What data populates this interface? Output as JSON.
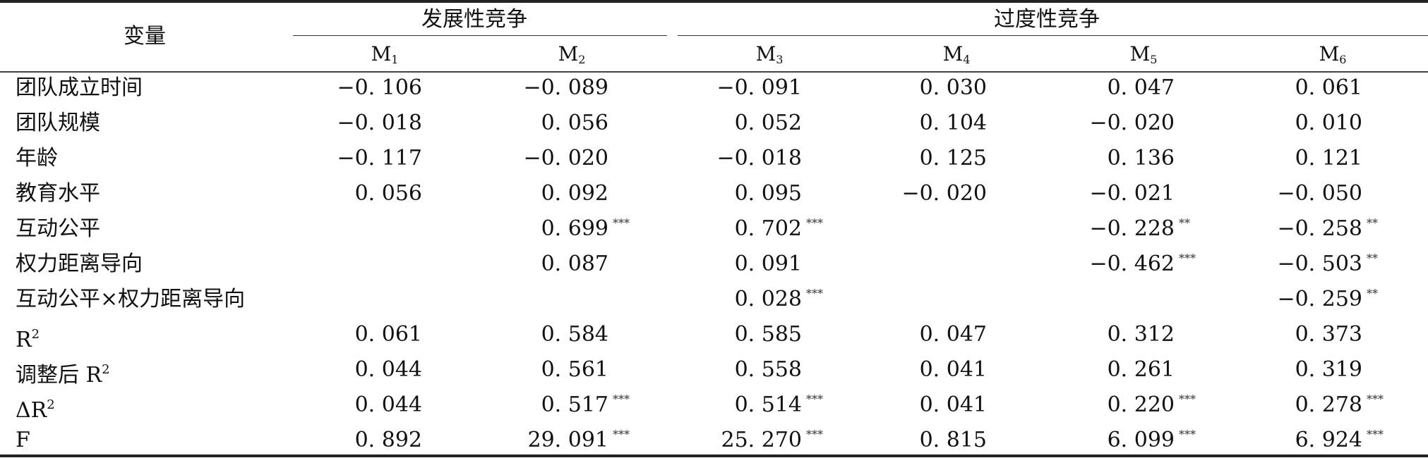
{
  "header": {
    "variable": "变量",
    "group_dev": "发展性竞争",
    "group_excess": "过度性竞争",
    "models": [
      {
        "base": "M",
        "sub": "1"
      },
      {
        "base": "M",
        "sub": "2"
      },
      {
        "base": "M",
        "sub": "3"
      },
      {
        "base": "M",
        "sub": "4"
      },
      {
        "base": "M",
        "sub": "5"
      },
      {
        "base": "M",
        "sub": "6"
      }
    ]
  },
  "rows": [
    {
      "label": "团队成立时间",
      "sup": "",
      "cells": [
        {
          "v": "−0. 106",
          "s": ""
        },
        {
          "v": "−0. 089",
          "s": ""
        },
        {
          "v": "−0. 091",
          "s": ""
        },
        {
          "v": "0. 030",
          "s": ""
        },
        {
          "v": "0. 047",
          "s": ""
        },
        {
          "v": "0. 061",
          "s": ""
        }
      ]
    },
    {
      "label": "团队规模",
      "sup": "",
      "cells": [
        {
          "v": "−0. 018",
          "s": ""
        },
        {
          "v": "0. 056",
          "s": ""
        },
        {
          "v": "0. 052",
          "s": ""
        },
        {
          "v": "0. 104",
          "s": ""
        },
        {
          "v": "−0. 020",
          "s": ""
        },
        {
          "v": "0. 010",
          "s": ""
        }
      ]
    },
    {
      "label": "年龄",
      "sup": "",
      "cells": [
        {
          "v": "−0. 117",
          "s": ""
        },
        {
          "v": "−0. 020",
          "s": ""
        },
        {
          "v": "−0. 018",
          "s": ""
        },
        {
          "v": "0. 125",
          "s": ""
        },
        {
          "v": "0. 136",
          "s": ""
        },
        {
          "v": "0. 121",
          "s": ""
        }
      ]
    },
    {
      "label": "教育水平",
      "sup": "",
      "cells": [
        {
          "v": "0. 056",
          "s": ""
        },
        {
          "v": "0. 092",
          "s": ""
        },
        {
          "v": "0. 095",
          "s": ""
        },
        {
          "v": "−0. 020",
          "s": ""
        },
        {
          "v": "−0. 021",
          "s": ""
        },
        {
          "v": "−0. 050",
          "s": ""
        }
      ]
    },
    {
      "label": "互动公平",
      "sup": "",
      "cells": [
        {
          "v": "",
          "s": ""
        },
        {
          "v": "0. 699",
          "s": "***"
        },
        {
          "v": "0. 702",
          "s": "***"
        },
        {
          "v": "",
          "s": ""
        },
        {
          "v": "−0. 228",
          "s": "**"
        },
        {
          "v": "−0. 258",
          "s": "**"
        }
      ]
    },
    {
      "label": "权力距离导向",
      "sup": "",
      "cells": [
        {
          "v": "",
          "s": ""
        },
        {
          "v": "0. 087",
          "s": ""
        },
        {
          "v": "0. 091",
          "s": ""
        },
        {
          "v": "",
          "s": ""
        },
        {
          "v": "−0. 462",
          "s": "***"
        },
        {
          "v": "−0. 503",
          "s": "**"
        }
      ]
    },
    {
      "label": "互动公平×权力距离导向",
      "sup": "",
      "cells": [
        {
          "v": "",
          "s": ""
        },
        {
          "v": "",
          "s": ""
        },
        {
          "v": "0. 028",
          "s": "***"
        },
        {
          "v": "",
          "s": ""
        },
        {
          "v": "",
          "s": ""
        },
        {
          "v": "−0. 259",
          "s": "**"
        }
      ]
    },
    {
      "label": "R",
      "sup": "2",
      "cells": [
        {
          "v": "0. 061",
          "s": ""
        },
        {
          "v": "0. 584",
          "s": ""
        },
        {
          "v": "0. 585",
          "s": ""
        },
        {
          "v": "0. 047",
          "s": ""
        },
        {
          "v": "0. 312",
          "s": ""
        },
        {
          "v": "0. 373",
          "s": ""
        }
      ]
    },
    {
      "label": "调整后 R",
      "sup": "2",
      "cells": [
        {
          "v": "0. 044",
          "s": ""
        },
        {
          "v": "0. 561",
          "s": ""
        },
        {
          "v": "0. 558",
          "s": ""
        },
        {
          "v": "0. 041",
          "s": ""
        },
        {
          "v": "0. 261",
          "s": ""
        },
        {
          "v": "0. 319",
          "s": ""
        }
      ]
    },
    {
      "label": "ΔR",
      "sup": "2",
      "cells": [
        {
          "v": "0. 044",
          "s": ""
        },
        {
          "v": "0. 517",
          "s": "***"
        },
        {
          "v": "0. 514",
          "s": "***"
        },
        {
          "v": "0. 041",
          "s": ""
        },
        {
          "v": "0. 220",
          "s": "***"
        },
        {
          "v": "0. 278",
          "s": "***"
        }
      ]
    },
    {
      "label": "F",
      "sup": "",
      "cells": [
        {
          "v": "0. 892",
          "s": ""
        },
        {
          "v": "29. 091",
          "s": "***"
        },
        {
          "v": "25. 270",
          "s": "***"
        },
        {
          "v": "0. 815",
          "s": ""
        },
        {
          "v": "6. 099",
          "s": "***"
        },
        {
          "v": "6. 924",
          "s": "***"
        }
      ]
    }
  ]
}
